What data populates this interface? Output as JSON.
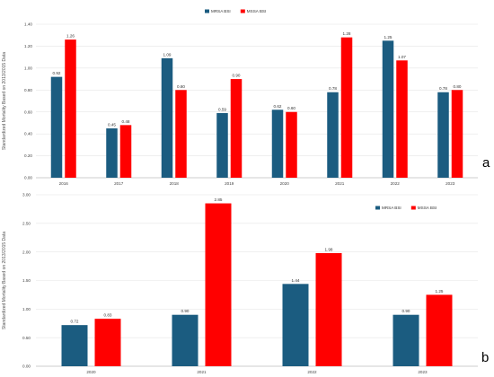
{
  "chart_data": [
    {
      "type": "bar",
      "panel_label": "a",
      "categories": [
        "2016",
        "2017",
        "2018",
        "2019",
        "2020",
        "2021",
        "2022",
        "2023"
      ],
      "series": [
        {
          "name": "MRSA BSI",
          "color": "#1b5c80",
          "values": [
            0.92,
            0.45,
            1.09,
            0.59,
            0.62,
            0.78,
            1.25,
            0.78
          ]
        },
        {
          "name": "MSSA BSI",
          "color": "#ff0000",
          "values": [
            1.26,
            0.48,
            0.8,
            0.9,
            0.6,
            1.28,
            1.07,
            0.8
          ]
        }
      ],
      "value_labels": {
        "MRSA BSI": [
          "0.92",
          "0.45",
          "1.09",
          "0.59",
          "0.62",
          "0.78",
          "1.25",
          "0.78"
        ],
        "MSSA BSI": [
          "1.26",
          "0.48",
          "0.80",
          "0.90",
          "0.60",
          "1.28",
          "1.07",
          "0.80"
        ]
      },
      "ylabel": "Standardized Mortality Based on 2013/2015 Data",
      "yticks": [
        "0.00",
        "0.20",
        "0.40",
        "0.60",
        "0.80",
        "1.00",
        "1.20",
        "1.40"
      ],
      "ylim": [
        0,
        1.4
      ],
      "legend": "top-center",
      "grid": true
    },
    {
      "type": "bar",
      "panel_label": "b",
      "categories": [
        "2020",
        "2021",
        "2022",
        "2023"
      ],
      "series": [
        {
          "name": "MRSA BSI",
          "color": "#1b5c80",
          "values": [
            0.72,
            0.9,
            1.44,
            0.9
          ]
        },
        {
          "name": "MSSA BSI",
          "color": "#ff0000",
          "values": [
            0.83,
            2.85,
            1.98,
            1.25
          ]
        }
      ],
      "value_labels": {
        "MRSA BSI": [
          "0.72",
          "0.90",
          "1.44",
          "0.90"
        ],
        "MSSA BSI": [
          "0.83",
          "2.85",
          "1.98",
          "1.25"
        ]
      },
      "ylabel": "Standardized Mortality Based on 2013/2015 Data",
      "yticks": [
        "0.00",
        "0.50",
        "1.00",
        "1.50",
        "2.00",
        "2.50",
        "3.00"
      ],
      "ylim": [
        0,
        3.0
      ],
      "legend": "top-right",
      "grid": true
    }
  ]
}
